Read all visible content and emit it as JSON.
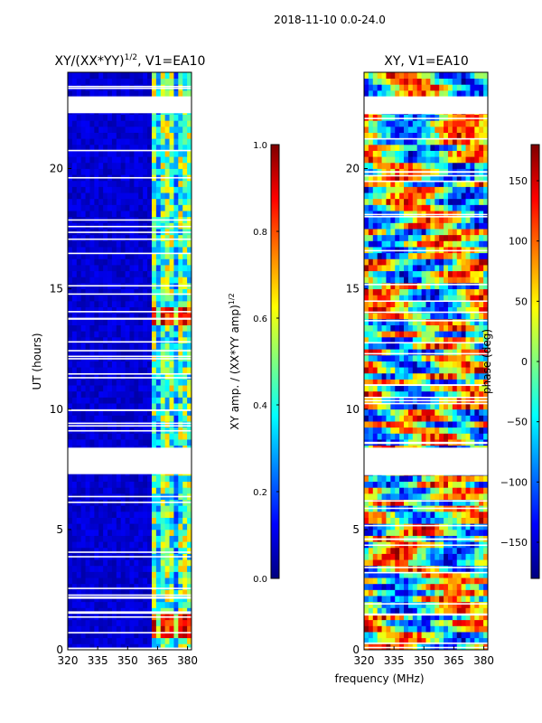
{
  "suptitle": "2018-11-10 0.0-24.0",
  "xlabel_shared": "frequency (MHz)",
  "colors": {
    "missing_band": "#ffffff",
    "frame": "#000000"
  },
  "chart_data": [
    {
      "type": "heatmap",
      "title": "XY/(XX*YY)",
      "title_exponent": "1/2",
      "title_suffix": ", V1=EA10",
      "ylabel": "UT (hours)",
      "xlim": [
        320,
        382
      ],
      "ylim": [
        0,
        24
      ],
      "xticks": [
        "320",
        "335",
        "350",
        "365",
        "380"
      ],
      "xtick_values": [
        320,
        335,
        350,
        365,
        380
      ],
      "yticks": [
        "0",
        "5",
        "10",
        "15",
        "20"
      ],
      "ytick_values": [
        0,
        5,
        10,
        15,
        20
      ],
      "colormap": "jet",
      "colorbar": {
        "label": "XY amp. / (XX*YY amp)",
        "label_exponent": "1/2",
        "range": [
          0.0,
          1.0
        ],
        "ticks": [
          "0.0",
          "0.2",
          "0.4",
          "0.6",
          "0.8",
          "1.0"
        ],
        "tick_values": [
          0.0,
          0.2,
          0.4,
          0.6,
          0.8,
          1.0
        ]
      },
      "missing_ut_ranges": [
        [
          7.3,
          8.4
        ],
        [
          22.3,
          23.0
        ]
      ],
      "value_note": "low (~0.05) below 361 MHz; mostly 0.3-0.7 above 361 MHz with peaks near 0.9-1.0 around 0.5-1.5 h and 13.5-14 h"
    },
    {
      "type": "heatmap",
      "title": "XY, V1=EA10",
      "xlim": [
        320,
        382
      ],
      "ylim": [
        0,
        24
      ],
      "xticks": [
        "320",
        "335",
        "350",
        "365",
        "380"
      ],
      "xtick_values": [
        320,
        335,
        350,
        365,
        380
      ],
      "yticks": [
        "0",
        "5",
        "10",
        "15",
        "20"
      ],
      "ytick_values": [
        0,
        5,
        10,
        15,
        20
      ],
      "colormap": "jet",
      "colorbar": {
        "label": "phase (deg)",
        "range": [
          -180,
          180
        ],
        "ticks": [
          "−150",
          "−100",
          "−50",
          "0",
          "50",
          "100",
          "150"
        ],
        "tick_values": [
          -150,
          -100,
          -50,
          0,
          50,
          100,
          150
        ]
      },
      "missing_ut_ranges": [
        [
          7.3,
          8.4
        ],
        [
          22.3,
          23.0
        ]
      ],
      "value_note": "noisy phase across full range -180 to 180 deg"
    }
  ]
}
